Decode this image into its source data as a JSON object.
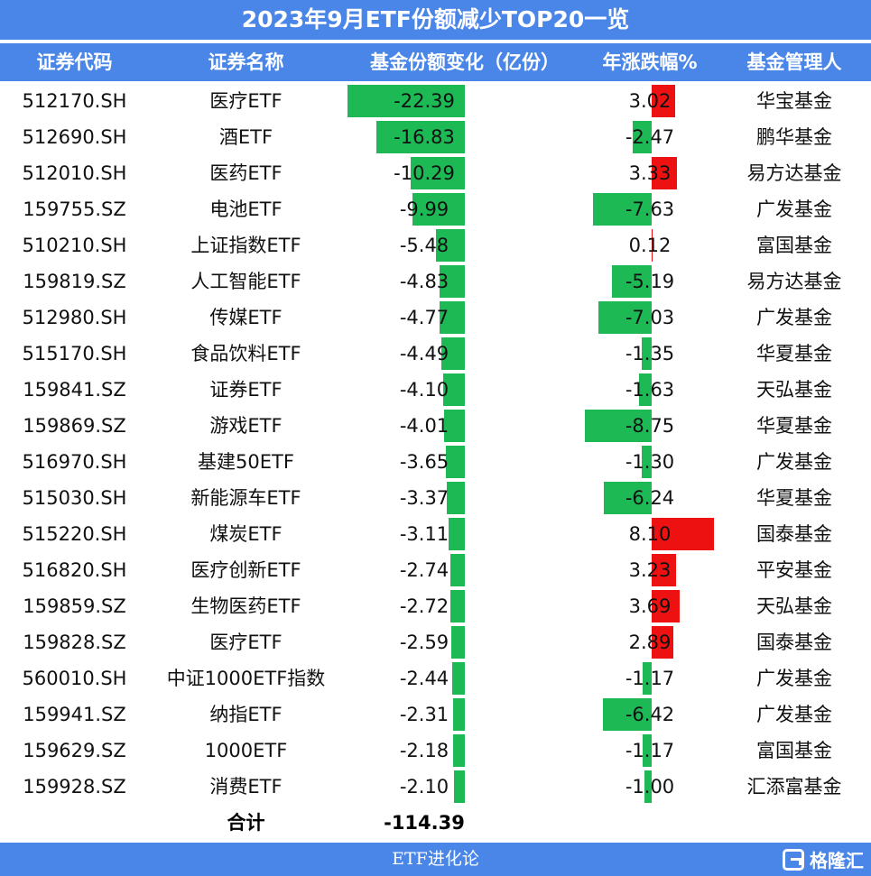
{
  "title": "2023年9月ETF份额减少TOP20一览",
  "headers": {
    "code": "证券代码",
    "name": "证券名称",
    "change": "基金份额变化（亿份）",
    "annual": "年涨跌幅%",
    "manager": "基金管理人"
  },
  "rows": [
    {
      "code": "512170.SH",
      "name": "医疗ETF",
      "change": "-22.39",
      "change_value": -22.39,
      "annual": "3.02",
      "annual_value": 3.02,
      "manager": "华宝基金"
    },
    {
      "code": "512690.SH",
      "name": "酒ETF",
      "change": "-16.83",
      "change_value": -16.83,
      "annual": "-2.47",
      "annual_value": -2.47,
      "manager": "鹏华基金"
    },
    {
      "code": "512010.SH",
      "name": "医药ETF",
      "change": "-10.29",
      "change_value": -10.29,
      "annual": "3.33",
      "annual_value": 3.33,
      "manager": "易方达基金"
    },
    {
      "code": "159755.SZ",
      "name": "电池ETF",
      "change": "-9.99",
      "change_value": -9.99,
      "annual": "-7.63",
      "annual_value": -7.63,
      "manager": "广发基金"
    },
    {
      "code": "510210.SH",
      "name": "上证指数ETF",
      "change": "-5.48",
      "change_value": -5.48,
      "annual": "0.12",
      "annual_value": 0.12,
      "manager": "富国基金"
    },
    {
      "code": "159819.SZ",
      "name": "人工智能ETF",
      "change": "-4.83",
      "change_value": -4.83,
      "annual": "-5.19",
      "annual_value": -5.19,
      "manager": "易方达基金"
    },
    {
      "code": "512980.SH",
      "name": "传媒ETF",
      "change": "-4.77",
      "change_value": -4.77,
      "annual": "-7.03",
      "annual_value": -7.03,
      "manager": "广发基金"
    },
    {
      "code": "515170.SH",
      "name": "食品饮料ETF",
      "change": "-4.49",
      "change_value": -4.49,
      "annual": "-1.35",
      "annual_value": -1.35,
      "manager": "华夏基金"
    },
    {
      "code": "159841.SZ",
      "name": "证券ETF",
      "change": "-4.10",
      "change_value": -4.1,
      "annual": "-1.63",
      "annual_value": -1.63,
      "manager": "天弘基金"
    },
    {
      "code": "159869.SZ",
      "name": "游戏ETF",
      "change": "-4.01",
      "change_value": -4.01,
      "annual": "-8.75",
      "annual_value": -8.75,
      "manager": "华夏基金"
    },
    {
      "code": "516970.SH",
      "name": "基建50ETF",
      "change": "-3.65",
      "change_value": -3.65,
      "annual": "-1.30",
      "annual_value": -1.3,
      "manager": "广发基金"
    },
    {
      "code": "515030.SH",
      "name": "新能源车ETF",
      "change": "-3.37",
      "change_value": -3.37,
      "annual": "-6.24",
      "annual_value": -6.24,
      "manager": "华夏基金"
    },
    {
      "code": "515220.SH",
      "name": "煤炭ETF",
      "change": "-3.11",
      "change_value": -3.11,
      "annual": "8.10",
      "annual_value": 8.1,
      "manager": "国泰基金"
    },
    {
      "code": "516820.SH",
      "name": "医疗创新ETF",
      "change": "-2.74",
      "change_value": -2.74,
      "annual": "3.23",
      "annual_value": 3.23,
      "manager": "平安基金"
    },
    {
      "code": "159859.SZ",
      "name": "生物医药ETF",
      "change": "-2.72",
      "change_value": -2.72,
      "annual": "3.69",
      "annual_value": 3.69,
      "manager": "天弘基金"
    },
    {
      "code": "159828.SZ",
      "name": "医疗ETF",
      "change": "-2.59",
      "change_value": -2.59,
      "annual": "2.89",
      "annual_value": 2.89,
      "manager": "国泰基金"
    },
    {
      "code": "560010.SH",
      "name": "中证1000ETF指数",
      "change": "-2.44",
      "change_value": -2.44,
      "annual": "-1.17",
      "annual_value": -1.17,
      "manager": "广发基金"
    },
    {
      "code": "159941.SZ",
      "name": "纳指ETF",
      "change": "-2.31",
      "change_value": -2.31,
      "annual": "-6.42",
      "annual_value": -6.42,
      "manager": "广发基金"
    },
    {
      "code": "159629.SZ",
      "name": "1000ETF",
      "change": "-2.18",
      "change_value": -2.18,
      "annual": "-1.17",
      "annual_value": -1.17,
      "manager": "富国基金"
    },
    {
      "code": "159928.SZ",
      "name": "消费ETF",
      "change": "-2.10",
      "change_value": -2.1,
      "annual": "-1.00",
      "annual_value": -1.0,
      "manager": "汇添富基金"
    }
  ],
  "total": {
    "label": "合计",
    "value": "-114.39"
  },
  "footer": {
    "text": "ETF进化论",
    "logo_text": "格隆汇",
    "logo_icon": "g-logo-icon"
  },
  "colors": {
    "header_bg": "#4a86e8",
    "negative_bar": "#1db954",
    "positive_bar": "#ee1111"
  }
}
